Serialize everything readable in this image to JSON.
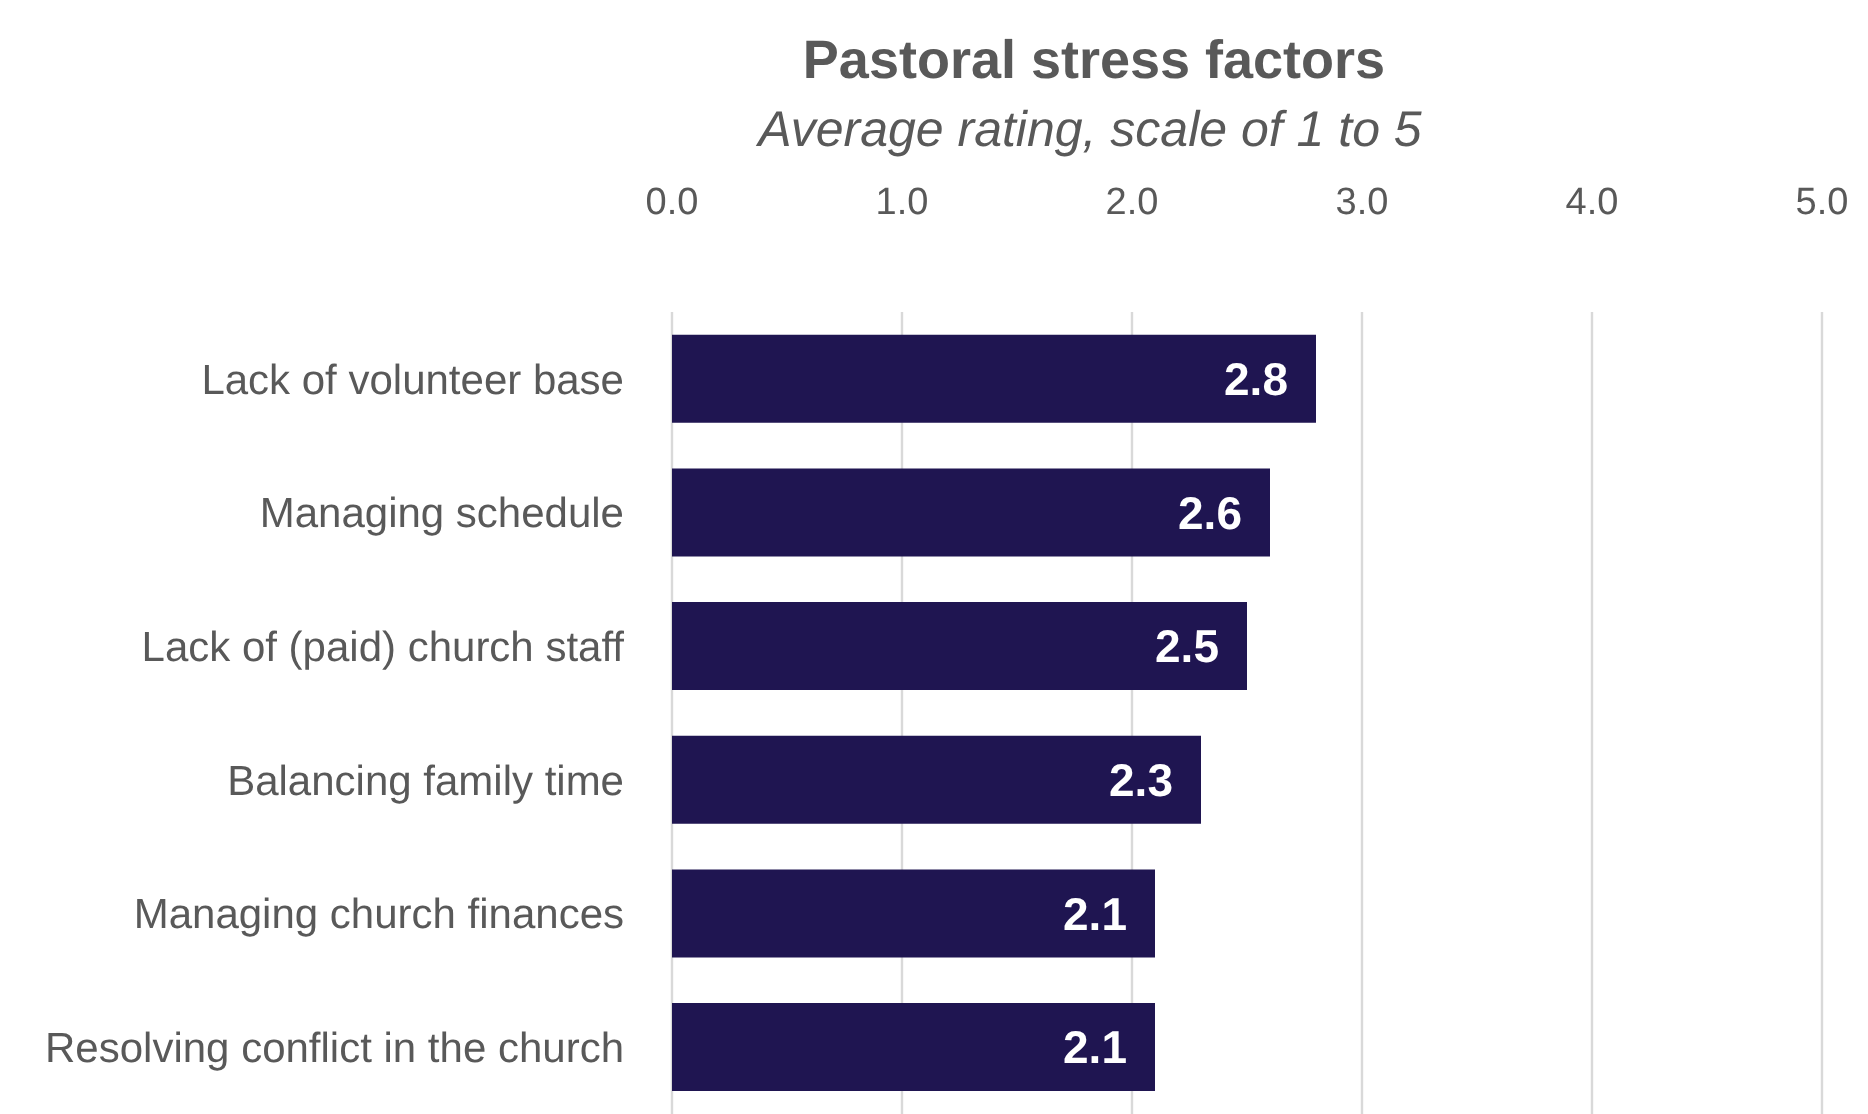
{
  "chart_data": {
    "type": "bar",
    "orientation": "horizontal",
    "title": "Pastoral stress factors",
    "subtitle": "Average rating, scale of 1 to 5",
    "categories": [
      "Lack of volunteer base",
      "Managing schedule",
      "Lack of (paid) church staff",
      "Balancing family time",
      "Managing church finances",
      "Resolving conflict in the church"
    ],
    "values": [
      2.8,
      2.6,
      2.5,
      2.3,
      2.1,
      2.1
    ],
    "color": "#1f1551",
    "xlim": [
      0,
      5
    ],
    "xticks": [
      {
        "value": 0,
        "label": "0.0"
      },
      {
        "value": 1,
        "label": "1.0"
      },
      {
        "value": 2,
        "label": "2.0"
      },
      {
        "value": 3,
        "label": "3.0"
      },
      {
        "value": 4,
        "label": "4.0"
      },
      {
        "value": 5,
        "label": "5.0"
      }
    ],
    "grid": "x",
    "data_labels": true
  }
}
